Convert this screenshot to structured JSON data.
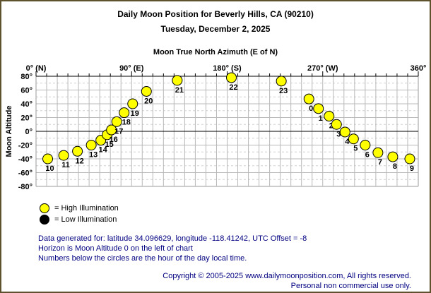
{
  "page": {
    "title": "Daily Moon Position for Beverly Hills, CA (90210)",
    "subtitle": "Tuesday, December 2, 2025"
  },
  "chart_data": {
    "type": "scatter",
    "title": "Moon True North Azimuth (E of N)",
    "xlabel": "Moon True North Azimuth (E of N)",
    "ylabel": "Moon Altitude",
    "xlim": [
      0,
      360
    ],
    "ylim": [
      -80,
      80
    ],
    "grid": true,
    "x_ticks": [
      {
        "value": 0,
        "label": "0° (N)"
      },
      {
        "value": 90,
        "label": "90° (E)"
      },
      {
        "value": 180,
        "label": "180° (S)"
      },
      {
        "value": 270,
        "label": "270° (W)"
      },
      {
        "value": 360,
        "label": "360°"
      }
    ],
    "y_ticks": [
      {
        "value": 80,
        "label": "80°"
      },
      {
        "value": 60,
        "label": "60°"
      },
      {
        "value": 40,
        "label": "40°"
      },
      {
        "value": 20,
        "label": "20°"
      },
      {
        "value": 0,
        "label": "0°"
      },
      {
        "value": -20,
        "label": "-20°"
      },
      {
        "value": -40,
        "label": "-40°"
      },
      {
        "value": -60,
        "label": "-60°"
      },
      {
        "value": -80,
        "label": "-80°"
      }
    ],
    "series": [
      {
        "name": "High Illumination",
        "color": "#ffff00",
        "points": [
          {
            "hour": 10,
            "azimuth": 11,
            "altitude": -40
          },
          {
            "hour": 11,
            "azimuth": 26,
            "altitude": -35
          },
          {
            "hour": 12,
            "azimuth": 39,
            "altitude": -29
          },
          {
            "hour": 13,
            "azimuth": 52,
            "altitude": -20
          },
          {
            "hour": 14,
            "azimuth": 61,
            "altitude": -13
          },
          {
            "hour": 15,
            "azimuth": 67,
            "altitude": -5
          },
          {
            "hour": 16,
            "azimuth": 71,
            "altitude": 2
          },
          {
            "hour": 17,
            "azimuth": 76,
            "altitude": 14
          },
          {
            "hour": 18,
            "azimuth": 83,
            "altitude": 27
          },
          {
            "hour": 19,
            "azimuth": 91,
            "altitude": 40
          },
          {
            "hour": 20,
            "azimuth": 104,
            "altitude": 58
          },
          {
            "hour": 21,
            "azimuth": 133,
            "altitude": 74
          },
          {
            "hour": 22,
            "azimuth": 184,
            "altitude": 78
          },
          {
            "hour": 23,
            "azimuth": 231,
            "altitude": 73
          },
          {
            "hour": 0,
            "azimuth": 257,
            "altitude": 47
          },
          {
            "hour": 1,
            "azimuth": 266,
            "altitude": 33
          },
          {
            "hour": 2,
            "azimuth": 276,
            "altitude": 22
          },
          {
            "hour": 3,
            "azimuth": 283,
            "altitude": 10
          },
          {
            "hour": 4,
            "azimuth": 291,
            "altitude": -1
          },
          {
            "hour": 5,
            "azimuth": 299,
            "altitude": -11
          },
          {
            "hour": 6,
            "azimuth": 310,
            "altitude": -20
          },
          {
            "hour": 7,
            "azimuth": 322,
            "altitude": -31
          },
          {
            "hour": 8,
            "azimuth": 336,
            "altitude": -37
          },
          {
            "hour": 9,
            "azimuth": 352,
            "altitude": -40
          }
        ]
      }
    ]
  },
  "legend": {
    "high_label": "= High Illumination",
    "high_color": "#ffff00",
    "low_label": "= Low Illumination",
    "low_color": "#000000"
  },
  "footnotes": [
    "Data generated for: latitude 34.096629, longitude -118.41242, UTC Offset = -8",
    "Horizon is Moon Altitude 0 on the left of chart",
    "Numbers below the circles are the hour of the day local time."
  ],
  "copyright": [
    "Copyright © 2005-2025 www.dailymoonposition.com, All rights reserved.",
    "Personal non commercial use only."
  ],
  "colors": {
    "frame_border": "#5e522c",
    "grid_major": "#b8b8b8",
    "grid_minor": "#d0d0d0",
    "footer_text": "#000080",
    "point_outline": "#000000"
  }
}
